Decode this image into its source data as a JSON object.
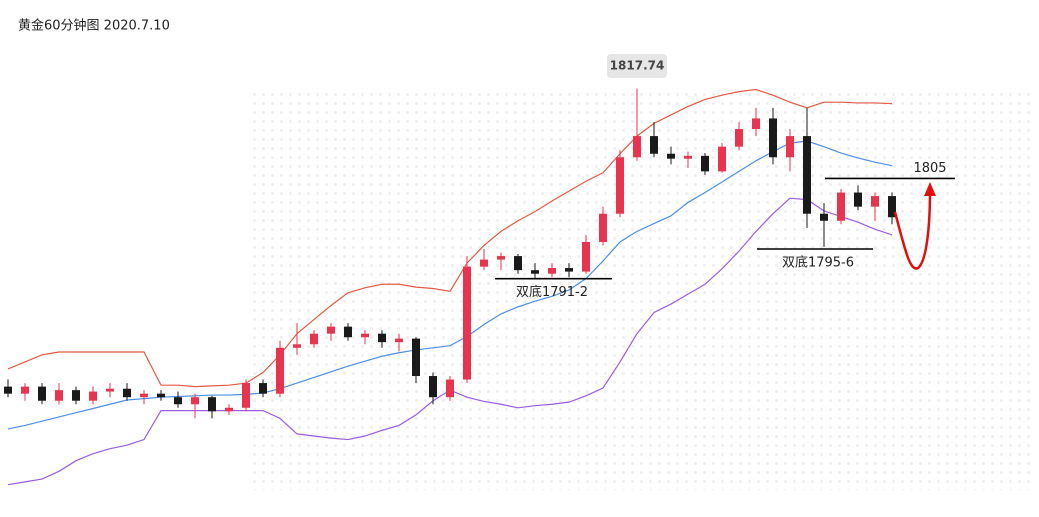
{
  "chart_data": {
    "type": "candlestick",
    "title": "黄金60分钟图  2020.7.10",
    "ylim": [
      1760,
      1830
    ],
    "up_color": "#e8344e",
    "down_color": "#1a1a1a",
    "open": [
      1775.5,
      1774.5,
      1775.5,
      1773.5,
      1775,
      1773.5,
      1774.8,
      1775.2,
      1774,
      1774.5,
      1774,
      1773,
      1774,
      1772,
      1772.5,
      1776,
      1774.5,
      1781,
      1781.5,
      1783,
      1784,
      1782.5,
      1783,
      1781.8,
      1782.3,
      1777,
      1774,
      1776.5,
      1792.5,
      1793.5,
      1794,
      1792,
      1791.5,
      1792.3,
      1791.8,
      1796,
      1800,
      1808,
      1811,
      1808.5,
      1807.8,
      1808.2,
      1806,
      1809.5,
      1812,
      1813.5,
      1808,
      1811,
      1800,
      1799,
      1803,
      1801,
      1802.5
    ],
    "high": [
      1776.5,
      1776,
      1776,
      1776,
      1775.5,
      1775.5,
      1776,
      1776,
      1775,
      1775,
      1774.8,
      1774.5,
      1774.2,
      1773,
      1776.5,
      1776.5,
      1782,
      1784.5,
      1783.5,
      1784.5,
      1784.5,
      1783.5,
      1783.5,
      1783,
      1782.5,
      1777.5,
      1777,
      1794,
      1795,
      1794.5,
      1794.3,
      1793,
      1793,
      1793,
      1797,
      1801,
      1809,
      1817.74,
      1813,
      1809.5,
      1808.8,
      1808.6,
      1810,
      1813,
      1815,
      1815,
      1812,
      1815,
      1801.5,
      1803.5,
      1804,
      1803,
      1803
    ],
    "low": [
      1774,
      1773.5,
      1773,
      1773,
      1773,
      1773,
      1774,
      1773.5,
      1773,
      1773.5,
      1772.5,
      1771,
      1771,
      1771.5,
      1772,
      1774,
      1774,
      1780,
      1781,
      1782,
      1782,
      1781.5,
      1781,
      1780.5,
      1776,
      1773,
      1773.5,
      1776,
      1792,
      1792,
      1791.5,
      1790.8,
      1791,
      1791,
      1791.5,
      1795.5,
      1799.5,
      1807.5,
      1808,
      1807,
      1806.5,
      1805.5,
      1805.8,
      1809,
      1811,
      1807,
      1806,
      1798,
      1795.3,
      1798.5,
      1800.5,
      1799,
      1798.5
    ],
    "close": [
      1774.5,
      1775.5,
      1773.5,
      1775,
      1773.5,
      1774.8,
      1775.2,
      1774,
      1774.5,
      1774,
      1773,
      1774,
      1772,
      1772.5,
      1776,
      1774.5,
      1781,
      1781.5,
      1783,
      1784,
      1782.5,
      1783,
      1781.8,
      1782.3,
      1777,
      1774,
      1776.5,
      1792.5,
      1793.5,
      1794,
      1792,
      1791.5,
      1792.3,
      1791.8,
      1796,
      1800,
      1808,
      1811,
      1808.5,
      1807.8,
      1808.2,
      1806,
      1809.5,
      1812,
      1813.5,
      1808,
      1811,
      1800,
      1799,
      1803,
      1801,
      1802.5,
      1799.5
    ],
    "bands": [
      {
        "color": "#e35a45",
        "values": [
          1778,
          1779,
          1780,
          1780.4,
          1780.4,
          1780.4,
          1780.4,
          1780.4,
          1780.4,
          1775.7,
          1775.7,
          1775.5,
          1775.6,
          1775.7,
          1776,
          1777.5,
          1780,
          1783,
          1785,
          1787,
          1788.8,
          1789.5,
          1790,
          1790,
          1789.6,
          1789.4,
          1789,
          1793,
          1795.5,
          1797.5,
          1799,
          1800.3,
          1801.8,
          1803.2,
          1804.6,
          1805.8,
          1808.5,
          1811,
          1812.8,
          1814,
          1815.2,
          1816.2,
          1816.8,
          1817.3,
          1817.6,
          1816.8,
          1815.8,
          1815,
          1815.8,
          1815.8,
          1815.7,
          1815.7,
          1815.6
        ]
      },
      {
        "color": "#4d8fe6",
        "values": [
          1769.5,
          1770,
          1770.6,
          1771.2,
          1771.8,
          1772.4,
          1773,
          1773.6,
          1773.8,
          1774,
          1774.1,
          1774.2,
          1774.3,
          1774.3,
          1774.4,
          1774.6,
          1775.2,
          1776,
          1776.8,
          1777.6,
          1778.4,
          1779.1,
          1779.8,
          1780.3,
          1780.7,
          1781,
          1781.3,
          1782.6,
          1784.3,
          1785.8,
          1786.8,
          1787.6,
          1788.3,
          1789.2,
          1790.8,
          1793.3,
          1796,
          1797.5,
          1798.6,
          1799.7,
          1801.6,
          1803,
          1804.5,
          1806,
          1807.5,
          1808.8,
          1810,
          1810.3,
          1809.5,
          1808.6,
          1807.9,
          1807.3,
          1806.8
        ]
      },
      {
        "color": "#9a5ee0",
        "values": [
          1761.6,
          1762,
          1762.4,
          1763.5,
          1765,
          1766,
          1766.7,
          1767.2,
          1768,
          1772.1,
          1772.1,
          1772.1,
          1772.1,
          1772.1,
          1772.1,
          1772.1,
          1771,
          1768.8,
          1768.5,
          1768.2,
          1768,
          1768.5,
          1769.3,
          1770,
          1771.5,
          1773.5,
          1775,
          1774,
          1773.4,
          1773,
          1772.5,
          1772.8,
          1773,
          1773.3,
          1774.2,
          1775.3,
          1779,
          1783,
          1786,
          1787.2,
          1788.6,
          1790,
          1792.2,
          1794.7,
          1797.5,
          1800,
          1802.2,
          1802,
          1800.4,
          1799.6,
          1798.8,
          1797.8,
          1797
        ]
      }
    ],
    "annotations": [
      {
        "text": "1817.74",
        "value": 1817.74
      },
      {
        "text": "1805",
        "value": 1805
      },
      {
        "text": "双底1791-2",
        "value": 1790.8
      },
      {
        "text": "双底1795-6",
        "value": 1795
      }
    ]
  }
}
